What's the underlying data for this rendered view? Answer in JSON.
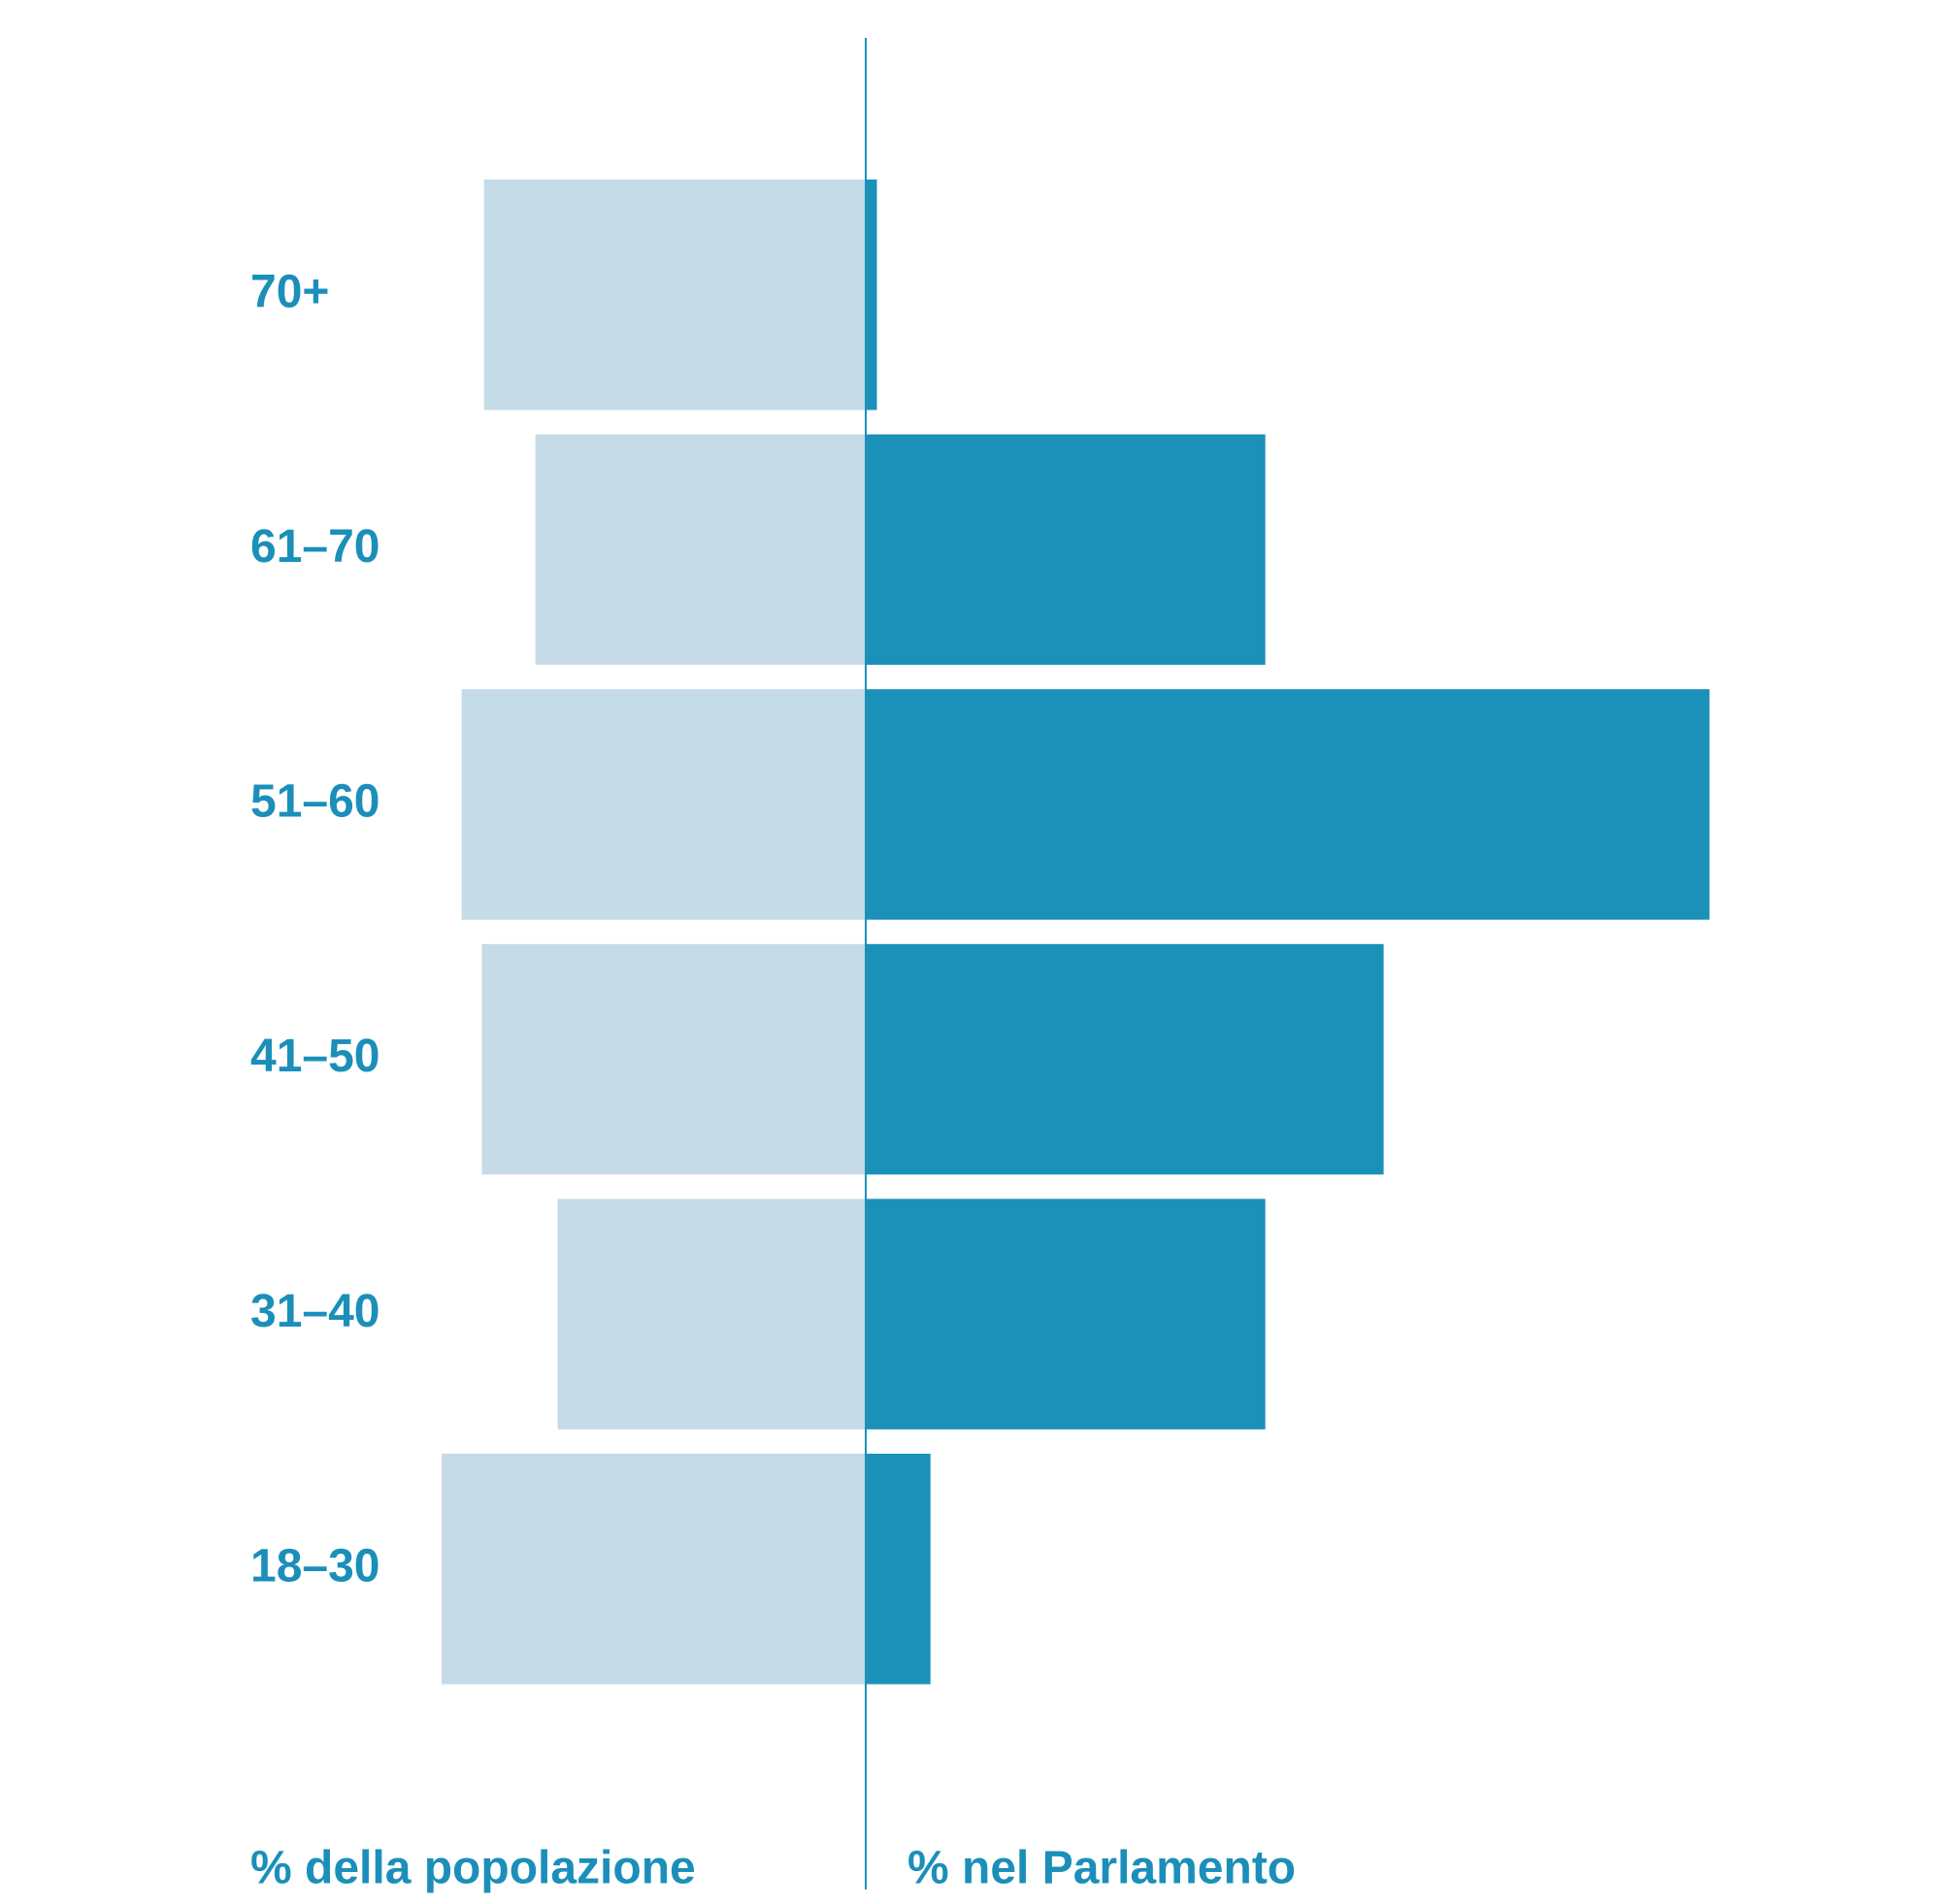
{
  "chart_data": {
    "type": "butterfly",
    "categories": [
      "70+",
      "61–70",
      "51–60",
      "41–50",
      "31–40",
      "18–30"
    ],
    "series": [
      {
        "name": "% della popolazione",
        "color": "#c5dbe7",
        "side": "left",
        "values": [
          17.1,
          14.8,
          18.1,
          17.2,
          13.8,
          19.0
        ]
      },
      {
        "name": "% nel Parlamento",
        "color": "#1b91ba",
        "side": "right",
        "values": [
          0.5,
          17.9,
          37.8,
          23.2,
          17.9,
          2.9
        ]
      }
    ],
    "xlim": [
      0,
      40
    ]
  }
}
